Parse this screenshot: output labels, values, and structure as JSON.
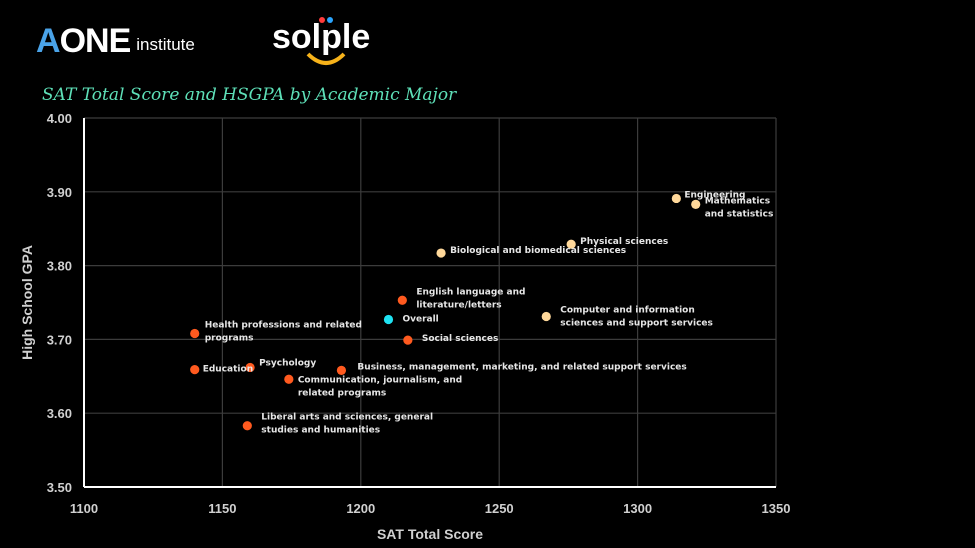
{
  "logos": {
    "aone_text": "AONE",
    "aone_sub": "institute",
    "solple_text": "solple"
  },
  "colors": {
    "background": "#000000",
    "title": "#5ee0b8",
    "highlight": "#ff5a1f",
    "light": "#ffd89a",
    "overall": "#1fe2f2",
    "grid": "#3c3c3c"
  },
  "chart_data": {
    "type": "scatter",
    "title": "SAT Total Score and HSGPA by Academic Major",
    "xlabel": "SAT Total Score",
    "ylabel": "High School GPA",
    "xlim": [
      1100,
      1350
    ],
    "ylim": [
      3.5,
      4.0
    ],
    "xticks": [
      1100,
      1150,
      1200,
      1250,
      1300,
      1350
    ],
    "yticks": [
      "3.50",
      "3.60",
      "3.70",
      "3.80",
      "3.90",
      "4.00"
    ],
    "grid": true,
    "points": [
      {
        "name": "Engineering",
        "lines": [
          "Engineering"
        ],
        "x": 1314,
        "y": 3.891,
        "group": "light"
      },
      {
        "name": "Mathematics and statistics",
        "lines": [
          "Mathematics",
          "and statistics"
        ],
        "x": 1321,
        "y": 3.883,
        "group": "light"
      },
      {
        "name": "Physical sciences",
        "lines": [
          "Physical sciences"
        ],
        "x": 1276,
        "y": 3.829,
        "group": "light"
      },
      {
        "name": "Biological and biomedical sciences",
        "lines": [
          "Biological and biomedical sciences"
        ],
        "x": 1229,
        "y": 3.817,
        "group": "light"
      },
      {
        "name": "Computer and information sciences and support services",
        "lines": [
          "Computer and information",
          "sciences and support services"
        ],
        "x": 1267,
        "y": 3.731,
        "group": "light"
      },
      {
        "name": "English language and literature/letters",
        "lines": [
          "English language and",
          "literature/letters"
        ],
        "x": 1215,
        "y": 3.753,
        "group": "highlight"
      },
      {
        "name": "Overall",
        "lines": [
          "Overall"
        ],
        "x": 1210,
        "y": 3.727,
        "group": "overall"
      },
      {
        "name": "Social sciences",
        "lines": [
          "Social sciences"
        ],
        "x": 1217,
        "y": 3.699,
        "group": "highlight"
      },
      {
        "name": "Health professions and related programs",
        "lines": [
          "Health professions and related",
          "programs"
        ],
        "x": 1140,
        "y": 3.708,
        "group": "highlight"
      },
      {
        "name": "Psychology",
        "lines": [
          "Psychology"
        ],
        "x": 1160,
        "y": 3.662,
        "group": "highlight"
      },
      {
        "name": "Education",
        "lines": [
          "Education"
        ],
        "x": 1140,
        "y": 3.659,
        "group": "highlight"
      },
      {
        "name": "Business, management, marketing, and related support services",
        "lines": [
          "Business, management, marketing, and related support services"
        ],
        "x": 1193,
        "y": 3.658,
        "group": "highlight"
      },
      {
        "name": "Communication, journalism, and related programs",
        "lines": [
          "Communication, journalism, and",
          "related programs"
        ],
        "x": 1174,
        "y": 3.646,
        "group": "highlight"
      },
      {
        "name": "Liberal arts and sciences, general studies and humanities",
        "lines": [
          "Liberal arts and sciences, general",
          "studies and humanities"
        ],
        "x": 1159,
        "y": 3.583,
        "group": "highlight"
      }
    ]
  }
}
